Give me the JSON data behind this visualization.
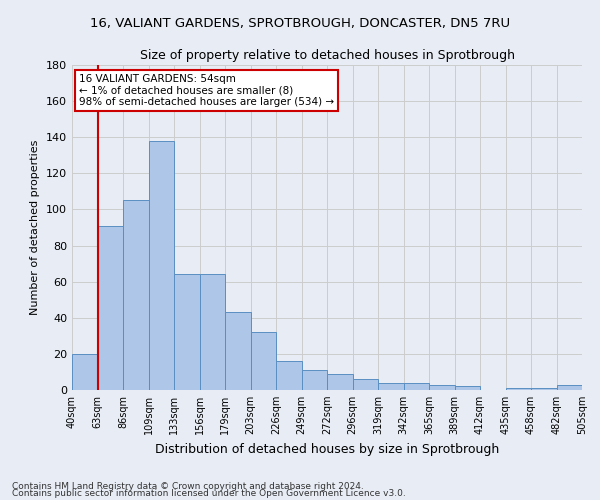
{
  "title_line1": "16, VALIANT GARDENS, SPROTBROUGH, DONCASTER, DN5 7RU",
  "title_line2": "Size of property relative to detached houses in Sprotbrough",
  "xlabel": "Distribution of detached houses by size in Sprotbrough",
  "ylabel": "Number of detached properties",
  "bar_values": [
    20,
    91,
    105,
    138,
    64,
    64,
    43,
    32,
    16,
    11,
    9,
    6,
    4,
    4,
    3,
    2,
    0,
    1,
    1,
    3
  ],
  "bar_labels": [
    "40sqm",
    "63sqm",
    "86sqm",
    "109sqm",
    "133sqm",
    "156sqm",
    "179sqm",
    "203sqm",
    "226sqm",
    "249sqm",
    "272sqm",
    "296sqm",
    "319sqm",
    "342sqm",
    "365sqm",
    "389sqm",
    "412sqm",
    "435sqm",
    "458sqm",
    "482sqm",
    "505sqm"
  ],
  "bar_color": "#aec6e8",
  "bar_edge_color": "#5a8fc2",
  "highlight_color": "#cc0000",
  "annotation_text_line1": "16 VALIANT GARDENS: 54sqm",
  "annotation_text_line2": "← 1% of detached houses are smaller (8)",
  "annotation_text_line3": "98% of semi-detached houses are larger (534) →",
  "ylim": [
    0,
    180
  ],
  "yticks": [
    0,
    20,
    40,
    60,
    80,
    100,
    120,
    140,
    160,
    180
  ],
  "grid_color": "#cccccc",
  "bg_color": "#e8edf5",
  "footnote1": "Contains HM Land Registry data © Crown copyright and database right 2024.",
  "footnote2": "Contains public sector information licensed under the Open Government Licence v3.0."
}
